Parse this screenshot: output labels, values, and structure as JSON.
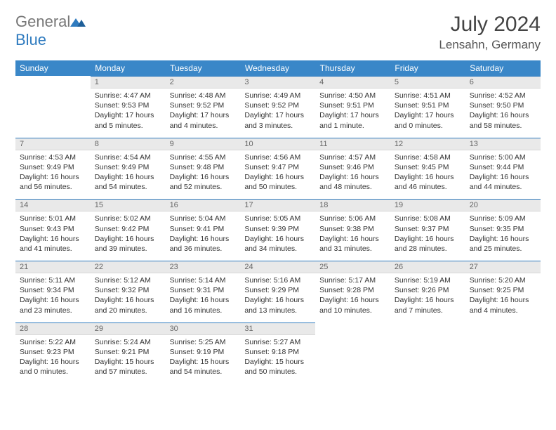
{
  "brand": {
    "name_gray": "General",
    "name_blue": "Blue"
  },
  "title": "July 2024",
  "location": "Lensahn, Germany",
  "colors": {
    "header_bg": "#3a87c8",
    "header_text": "#ffffff",
    "daynum_bg": "#e9e9e9",
    "border": "#2f7bbf",
    "body_text": "#333333"
  },
  "day_headers": [
    "Sunday",
    "Monday",
    "Tuesday",
    "Wednesday",
    "Thursday",
    "Friday",
    "Saturday"
  ],
  "weeks": [
    [
      null,
      {
        "n": "1",
        "sunrise": "4:47 AM",
        "sunset": "9:53 PM",
        "daylight": "17 hours and 5 minutes."
      },
      {
        "n": "2",
        "sunrise": "4:48 AM",
        "sunset": "9:52 PM",
        "daylight": "17 hours and 4 minutes."
      },
      {
        "n": "3",
        "sunrise": "4:49 AM",
        "sunset": "9:52 PM",
        "daylight": "17 hours and 3 minutes."
      },
      {
        "n": "4",
        "sunrise": "4:50 AM",
        "sunset": "9:51 PM",
        "daylight": "17 hours and 1 minute."
      },
      {
        "n": "5",
        "sunrise": "4:51 AM",
        "sunset": "9:51 PM",
        "daylight": "17 hours and 0 minutes."
      },
      {
        "n": "6",
        "sunrise": "4:52 AM",
        "sunset": "9:50 PM",
        "daylight": "16 hours and 58 minutes."
      }
    ],
    [
      {
        "n": "7",
        "sunrise": "4:53 AM",
        "sunset": "9:49 PM",
        "daylight": "16 hours and 56 minutes."
      },
      {
        "n": "8",
        "sunrise": "4:54 AM",
        "sunset": "9:49 PM",
        "daylight": "16 hours and 54 minutes."
      },
      {
        "n": "9",
        "sunrise": "4:55 AM",
        "sunset": "9:48 PM",
        "daylight": "16 hours and 52 minutes."
      },
      {
        "n": "10",
        "sunrise": "4:56 AM",
        "sunset": "9:47 PM",
        "daylight": "16 hours and 50 minutes."
      },
      {
        "n": "11",
        "sunrise": "4:57 AM",
        "sunset": "9:46 PM",
        "daylight": "16 hours and 48 minutes."
      },
      {
        "n": "12",
        "sunrise": "4:58 AM",
        "sunset": "9:45 PM",
        "daylight": "16 hours and 46 minutes."
      },
      {
        "n": "13",
        "sunrise": "5:00 AM",
        "sunset": "9:44 PM",
        "daylight": "16 hours and 44 minutes."
      }
    ],
    [
      {
        "n": "14",
        "sunrise": "5:01 AM",
        "sunset": "9:43 PM",
        "daylight": "16 hours and 41 minutes."
      },
      {
        "n": "15",
        "sunrise": "5:02 AM",
        "sunset": "9:42 PM",
        "daylight": "16 hours and 39 minutes."
      },
      {
        "n": "16",
        "sunrise": "5:04 AM",
        "sunset": "9:41 PM",
        "daylight": "16 hours and 36 minutes."
      },
      {
        "n": "17",
        "sunrise": "5:05 AM",
        "sunset": "9:39 PM",
        "daylight": "16 hours and 34 minutes."
      },
      {
        "n": "18",
        "sunrise": "5:06 AM",
        "sunset": "9:38 PM",
        "daylight": "16 hours and 31 minutes."
      },
      {
        "n": "19",
        "sunrise": "5:08 AM",
        "sunset": "9:37 PM",
        "daylight": "16 hours and 28 minutes."
      },
      {
        "n": "20",
        "sunrise": "5:09 AM",
        "sunset": "9:35 PM",
        "daylight": "16 hours and 25 minutes."
      }
    ],
    [
      {
        "n": "21",
        "sunrise": "5:11 AM",
        "sunset": "9:34 PM",
        "daylight": "16 hours and 23 minutes."
      },
      {
        "n": "22",
        "sunrise": "5:12 AM",
        "sunset": "9:32 PM",
        "daylight": "16 hours and 20 minutes."
      },
      {
        "n": "23",
        "sunrise": "5:14 AM",
        "sunset": "9:31 PM",
        "daylight": "16 hours and 16 minutes."
      },
      {
        "n": "24",
        "sunrise": "5:16 AM",
        "sunset": "9:29 PM",
        "daylight": "16 hours and 13 minutes."
      },
      {
        "n": "25",
        "sunrise": "5:17 AM",
        "sunset": "9:28 PM",
        "daylight": "16 hours and 10 minutes."
      },
      {
        "n": "26",
        "sunrise": "5:19 AM",
        "sunset": "9:26 PM",
        "daylight": "16 hours and 7 minutes."
      },
      {
        "n": "27",
        "sunrise": "5:20 AM",
        "sunset": "9:25 PM",
        "daylight": "16 hours and 4 minutes."
      }
    ],
    [
      {
        "n": "28",
        "sunrise": "5:22 AM",
        "sunset": "9:23 PM",
        "daylight": "16 hours and 0 minutes."
      },
      {
        "n": "29",
        "sunrise": "5:24 AM",
        "sunset": "9:21 PM",
        "daylight": "15 hours and 57 minutes."
      },
      {
        "n": "30",
        "sunrise": "5:25 AM",
        "sunset": "9:19 PM",
        "daylight": "15 hours and 54 minutes."
      },
      {
        "n": "31",
        "sunrise": "5:27 AM",
        "sunset": "9:18 PM",
        "daylight": "15 hours and 50 minutes."
      },
      null,
      null,
      null
    ]
  ],
  "labels": {
    "sunrise": "Sunrise:",
    "sunset": "Sunset:",
    "daylight": "Daylight:"
  }
}
